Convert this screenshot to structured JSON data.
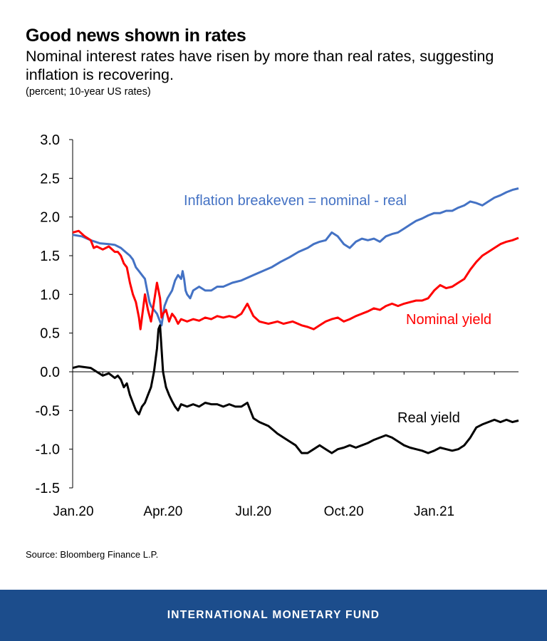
{
  "header": {
    "title": "Good news shown in rates",
    "subtitle": "Nominal interest rates have risen by more than real rates, suggesting inflation is recovering.",
    "units": "(percent; 10-year US rates)"
  },
  "source": "Source: Bloomberg Finance L.P.",
  "footer": {
    "org": "INTERNATIONAL MONETARY FUND"
  },
  "colors": {
    "breakeven": "#4472c4",
    "nominal": "#ff0000",
    "real": "#000000",
    "footer_bg": "#1c4d8c"
  },
  "chart_data": {
    "type": "line",
    "title": "Good news shown in rates",
    "ylim": [
      -1.5,
      3.0
    ],
    "xlim": [
      0,
      14.8
    ],
    "yticks": [
      "3.0",
      "2.5",
      "2.0",
      "1.5",
      "1.0",
      "0.5",
      "0.0",
      "-0.5",
      "-1.0",
      "-1.5"
    ],
    "xticks": [
      {
        "label": "Jan.20",
        "x": 0
      },
      {
        "label": "Apr.20",
        "x": 3
      },
      {
        "label": "Jul.20",
        "x": 6
      },
      {
        "label": "Oct.20",
        "x": 9
      },
      {
        "label": "Jan.21",
        "x": 12
      }
    ],
    "x_unit": "months since Jan 2020",
    "series": [
      {
        "name": "Inflation breakeven = nominal - real",
        "color": "#4472c4",
        "points": [
          [
            0,
            1.77
          ],
          [
            0.3,
            1.75
          ],
          [
            0.6,
            1.7
          ],
          [
            0.9,
            1.66
          ],
          [
            1.2,
            1.65
          ],
          [
            1.4,
            1.64
          ],
          [
            1.6,
            1.6
          ],
          [
            1.75,
            1.55
          ],
          [
            1.9,
            1.5
          ],
          [
            2.0,
            1.45
          ],
          [
            2.1,
            1.35
          ],
          [
            2.2,
            1.3
          ],
          [
            2.3,
            1.25
          ],
          [
            2.4,
            1.2
          ],
          [
            2.5,
            1.0
          ],
          [
            2.55,
            0.9
          ],
          [
            2.6,
            0.85
          ],
          [
            2.7,
            0.8
          ],
          [
            2.8,
            0.75
          ],
          [
            2.9,
            0.65
          ],
          [
            2.95,
            0.6
          ],
          [
            3.05,
            0.85
          ],
          [
            3.15,
            0.95
          ],
          [
            3.3,
            1.05
          ],
          [
            3.4,
            1.18
          ],
          [
            3.5,
            1.25
          ],
          [
            3.6,
            1.2
          ],
          [
            3.65,
            1.3
          ],
          [
            3.7,
            1.2
          ],
          [
            3.75,
            1.05
          ],
          [
            3.8,
            1.0
          ],
          [
            3.9,
            0.95
          ],
          [
            4.0,
            1.05
          ],
          [
            4.2,
            1.1
          ],
          [
            4.4,
            1.05
          ],
          [
            4.6,
            1.05
          ],
          [
            4.8,
            1.1
          ],
          [
            5.0,
            1.1
          ],
          [
            5.3,
            1.15
          ],
          [
            5.6,
            1.18
          ],
          [
            6.0,
            1.25
          ],
          [
            6.3,
            1.3
          ],
          [
            6.6,
            1.35
          ],
          [
            6.9,
            1.42
          ],
          [
            7.2,
            1.48
          ],
          [
            7.5,
            1.55
          ],
          [
            7.8,
            1.6
          ],
          [
            8.0,
            1.65
          ],
          [
            8.2,
            1.68
          ],
          [
            8.4,
            1.7
          ],
          [
            8.6,
            1.8
          ],
          [
            8.8,
            1.75
          ],
          [
            9.0,
            1.65
          ],
          [
            9.2,
            1.6
          ],
          [
            9.4,
            1.68
          ],
          [
            9.6,
            1.72
          ],
          [
            9.8,
            1.7
          ],
          [
            10.0,
            1.72
          ],
          [
            10.2,
            1.68
          ],
          [
            10.4,
            1.75
          ],
          [
            10.6,
            1.78
          ],
          [
            10.8,
            1.8
          ],
          [
            11.0,
            1.85
          ],
          [
            11.2,
            1.9
          ],
          [
            11.4,
            1.95
          ],
          [
            11.6,
            1.98
          ],
          [
            11.8,
            2.02
          ],
          [
            12.0,
            2.05
          ],
          [
            12.2,
            2.05
          ],
          [
            12.4,
            2.08
          ],
          [
            12.6,
            2.08
          ],
          [
            12.8,
            2.12
          ],
          [
            13.0,
            2.15
          ],
          [
            13.2,
            2.2
          ],
          [
            13.4,
            2.18
          ],
          [
            13.6,
            2.15
          ],
          [
            13.8,
            2.2
          ],
          [
            14.0,
            2.25
          ],
          [
            14.2,
            2.28
          ],
          [
            14.4,
            2.32
          ],
          [
            14.6,
            2.35
          ],
          [
            14.8,
            2.37
          ]
        ]
      },
      {
        "name": "Nominal yield",
        "color": "#ff0000",
        "points": [
          [
            0,
            1.8
          ],
          [
            0.2,
            1.82
          ],
          [
            0.4,
            1.75
          ],
          [
            0.6,
            1.7
          ],
          [
            0.7,
            1.6
          ],
          [
            0.8,
            1.62
          ],
          [
            1.0,
            1.58
          ],
          [
            1.2,
            1.62
          ],
          [
            1.4,
            1.55
          ],
          [
            1.5,
            1.55
          ],
          [
            1.6,
            1.5
          ],
          [
            1.7,
            1.4
          ],
          [
            1.8,
            1.35
          ],
          [
            1.9,
            1.15
          ],
          [
            2.0,
            1.0
          ],
          [
            2.1,
            0.9
          ],
          [
            2.2,
            0.7
          ],
          [
            2.25,
            0.55
          ],
          [
            2.3,
            0.7
          ],
          [
            2.4,
            1.0
          ],
          [
            2.5,
            0.8
          ],
          [
            2.6,
            0.65
          ],
          [
            2.7,
            0.9
          ],
          [
            2.8,
            1.15
          ],
          [
            2.9,
            0.95
          ],
          [
            2.95,
            0.7
          ],
          [
            3.0,
            0.75
          ],
          [
            3.1,
            0.8
          ],
          [
            3.2,
            0.65
          ],
          [
            3.3,
            0.75
          ],
          [
            3.4,
            0.7
          ],
          [
            3.5,
            0.62
          ],
          [
            3.6,
            0.68
          ],
          [
            3.8,
            0.65
          ],
          [
            4.0,
            0.68
          ],
          [
            4.2,
            0.66
          ],
          [
            4.4,
            0.7
          ],
          [
            4.6,
            0.68
          ],
          [
            4.8,
            0.72
          ],
          [
            5.0,
            0.7
          ],
          [
            5.2,
            0.72
          ],
          [
            5.4,
            0.7
          ],
          [
            5.6,
            0.75
          ],
          [
            5.8,
            0.88
          ],
          [
            6.0,
            0.72
          ],
          [
            6.2,
            0.65
          ],
          [
            6.5,
            0.62
          ],
          [
            6.8,
            0.65
          ],
          [
            7.0,
            0.62
          ],
          [
            7.3,
            0.65
          ],
          [
            7.6,
            0.6
          ],
          [
            7.8,
            0.58
          ],
          [
            8.0,
            0.55
          ],
          [
            8.2,
            0.6
          ],
          [
            8.4,
            0.65
          ],
          [
            8.6,
            0.68
          ],
          [
            8.8,
            0.7
          ],
          [
            9.0,
            0.65
          ],
          [
            9.2,
            0.68
          ],
          [
            9.4,
            0.72
          ],
          [
            9.6,
            0.75
          ],
          [
            9.8,
            0.78
          ],
          [
            10.0,
            0.82
          ],
          [
            10.2,
            0.8
          ],
          [
            10.4,
            0.85
          ],
          [
            10.6,
            0.88
          ],
          [
            10.8,
            0.85
          ],
          [
            11.0,
            0.88
          ],
          [
            11.2,
            0.9
          ],
          [
            11.4,
            0.92
          ],
          [
            11.6,
            0.92
          ],
          [
            11.8,
            0.95
          ],
          [
            12.0,
            1.05
          ],
          [
            12.2,
            1.12
          ],
          [
            12.4,
            1.08
          ],
          [
            12.6,
            1.1
          ],
          [
            12.8,
            1.15
          ],
          [
            13.0,
            1.2
          ],
          [
            13.2,
            1.32
          ],
          [
            13.4,
            1.42
          ],
          [
            13.6,
            1.5
          ],
          [
            13.8,
            1.55
          ],
          [
            14.0,
            1.6
          ],
          [
            14.2,
            1.65
          ],
          [
            14.4,
            1.68
          ],
          [
            14.6,
            1.7
          ],
          [
            14.8,
            1.73
          ]
        ]
      },
      {
        "name": "Real yield",
        "color": "#000000",
        "points": [
          [
            0,
            0.05
          ],
          [
            0.2,
            0.07
          ],
          [
            0.4,
            0.06
          ],
          [
            0.6,
            0.05
          ],
          [
            0.8,
            0.0
          ],
          [
            1.0,
            -0.05
          ],
          [
            1.2,
            -0.02
          ],
          [
            1.4,
            -0.08
          ],
          [
            1.5,
            -0.05
          ],
          [
            1.6,
            -0.1
          ],
          [
            1.7,
            -0.2
          ],
          [
            1.8,
            -0.15
          ],
          [
            1.9,
            -0.3
          ],
          [
            2.0,
            -0.4
          ],
          [
            2.1,
            -0.5
          ],
          [
            2.2,
            -0.55
          ],
          [
            2.3,
            -0.45
          ],
          [
            2.4,
            -0.4
          ],
          [
            2.5,
            -0.3
          ],
          [
            2.6,
            -0.2
          ],
          [
            2.7,
            0.0
          ],
          [
            2.8,
            0.3
          ],
          [
            2.85,
            0.55
          ],
          [
            2.9,
            0.6
          ],
          [
            2.95,
            0.3
          ],
          [
            3.0,
            0.0
          ],
          [
            3.1,
            -0.2
          ],
          [
            3.2,
            -0.3
          ],
          [
            3.3,
            -0.38
          ],
          [
            3.4,
            -0.45
          ],
          [
            3.5,
            -0.5
          ],
          [
            3.6,
            -0.42
          ],
          [
            3.8,
            -0.45
          ],
          [
            4.0,
            -0.42
          ],
          [
            4.2,
            -0.45
          ],
          [
            4.4,
            -0.4
          ],
          [
            4.6,
            -0.42
          ],
          [
            4.8,
            -0.42
          ],
          [
            5.0,
            -0.45
          ],
          [
            5.2,
            -0.42
          ],
          [
            5.4,
            -0.45
          ],
          [
            5.6,
            -0.45
          ],
          [
            5.8,
            -0.4
          ],
          [
            6.0,
            -0.6
          ],
          [
            6.2,
            -0.65
          ],
          [
            6.5,
            -0.7
          ],
          [
            6.8,
            -0.8
          ],
          [
            7.0,
            -0.85
          ],
          [
            7.2,
            -0.9
          ],
          [
            7.4,
            -0.95
          ],
          [
            7.6,
            -1.05
          ],
          [
            7.8,
            -1.05
          ],
          [
            8.0,
            -1.0
          ],
          [
            8.2,
            -0.95
          ],
          [
            8.4,
            -1.0
          ],
          [
            8.6,
            -1.05
          ],
          [
            8.8,
            -1.0
          ],
          [
            9.0,
            -0.98
          ],
          [
            9.2,
            -0.95
          ],
          [
            9.4,
            -0.98
          ],
          [
            9.6,
            -0.95
          ],
          [
            9.8,
            -0.92
          ],
          [
            10.0,
            -0.88
          ],
          [
            10.2,
            -0.85
          ],
          [
            10.4,
            -0.82
          ],
          [
            10.6,
            -0.85
          ],
          [
            10.8,
            -0.9
          ],
          [
            11.0,
            -0.95
          ],
          [
            11.2,
            -0.98
          ],
          [
            11.4,
            -1.0
          ],
          [
            11.6,
            -1.02
          ],
          [
            11.8,
            -1.05
          ],
          [
            12.0,
            -1.02
          ],
          [
            12.2,
            -0.98
          ],
          [
            12.4,
            -1.0
          ],
          [
            12.6,
            -1.02
          ],
          [
            12.8,
            -1.0
          ],
          [
            13.0,
            -0.95
          ],
          [
            13.2,
            -0.85
          ],
          [
            13.4,
            -0.72
          ],
          [
            13.6,
            -0.68
          ],
          [
            13.8,
            -0.65
          ],
          [
            14.0,
            -0.62
          ],
          [
            14.2,
            -0.65
          ],
          [
            14.4,
            -0.62
          ],
          [
            14.6,
            -0.65
          ],
          [
            14.8,
            -0.63
          ]
        ]
      }
    ],
    "annotations": [
      {
        "text": "Inflation breakeven = nominal - real",
        "series": 0
      },
      {
        "text": "Nominal yield",
        "series": 1
      },
      {
        "text": "Real yield",
        "series": 2
      }
    ]
  }
}
